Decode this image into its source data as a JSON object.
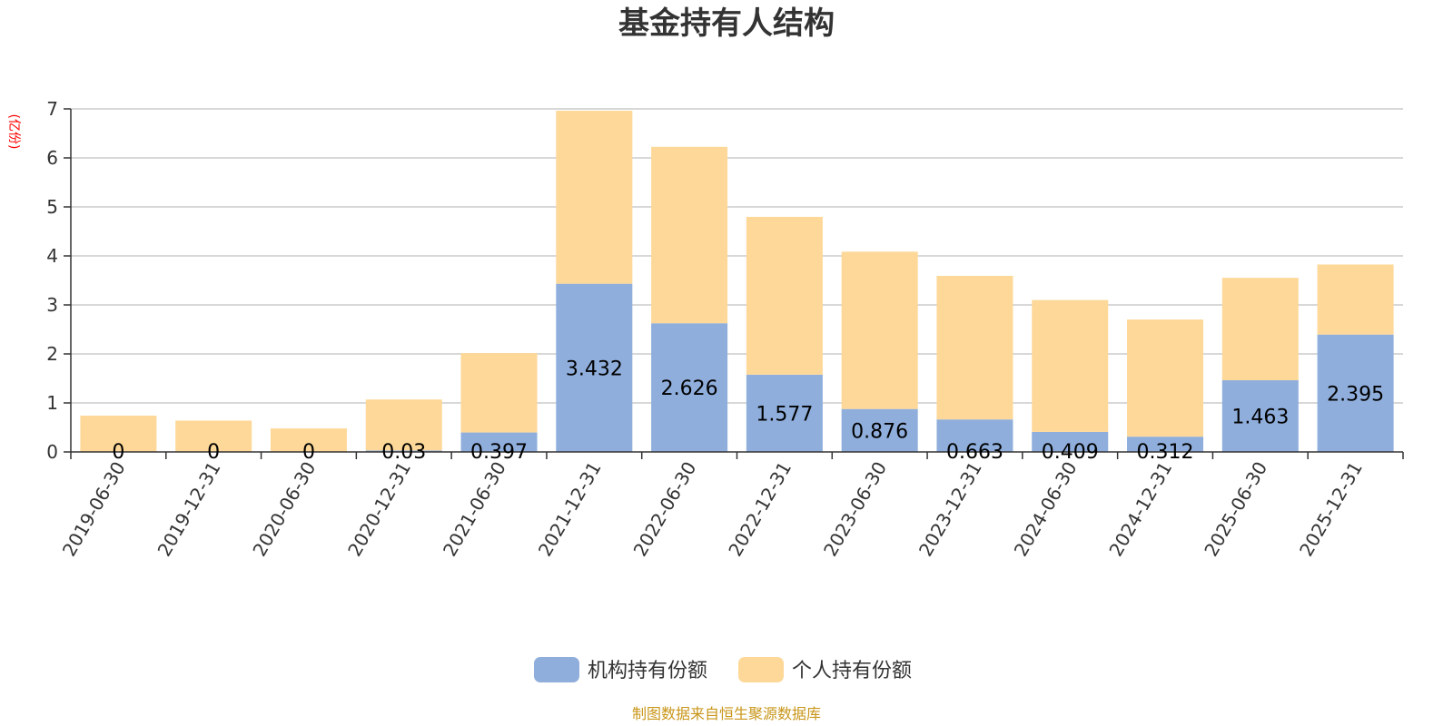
{
  "chart_data": {
    "type": "bar",
    "stacked": true,
    "title": "基金持有人结构",
    "ylabel": "(亿份)",
    "ylim": [
      0,
      7
    ],
    "yticks": [
      0,
      1,
      2,
      3,
      4,
      5,
      6,
      7
    ],
    "grid": true,
    "legend_position": "bottom",
    "categories": [
      "2019-06-30",
      "2019-12-31",
      "2020-06-30",
      "2020-12-31",
      "2021-06-30",
      "2021-12-31",
      "2022-06-30",
      "2022-12-31",
      "2023-06-30",
      "2023-12-31",
      "2024-06-30",
      "2024-12-31",
      "2025-06-30",
      "2025-12-31"
    ],
    "series": [
      {
        "name": "机构持有份额",
        "color": "#8faedc",
        "values": [
          0,
          0,
          0,
          0.03,
          0.397,
          3.432,
          2.626,
          1.577,
          0.876,
          0.663,
          0.409,
          0.312,
          1.463,
          2.395
        ],
        "labels": [
          "0",
          "0",
          "0",
          "0.03",
          "0.397",
          "3.432",
          "2.626",
          "1.577",
          "0.876",
          "0.663",
          "0.409",
          "0.312",
          "1.463",
          "2.395"
        ]
      },
      {
        "name": "个人持有份额",
        "color": "#fdd898",
        "values": [
          0.74,
          0.64,
          0.48,
          1.04,
          1.62,
          3.53,
          3.6,
          3.22,
          3.21,
          2.93,
          2.69,
          2.39,
          2.09,
          1.43
        ]
      }
    ],
    "source": "制图数据来自恒生聚源数据库"
  }
}
